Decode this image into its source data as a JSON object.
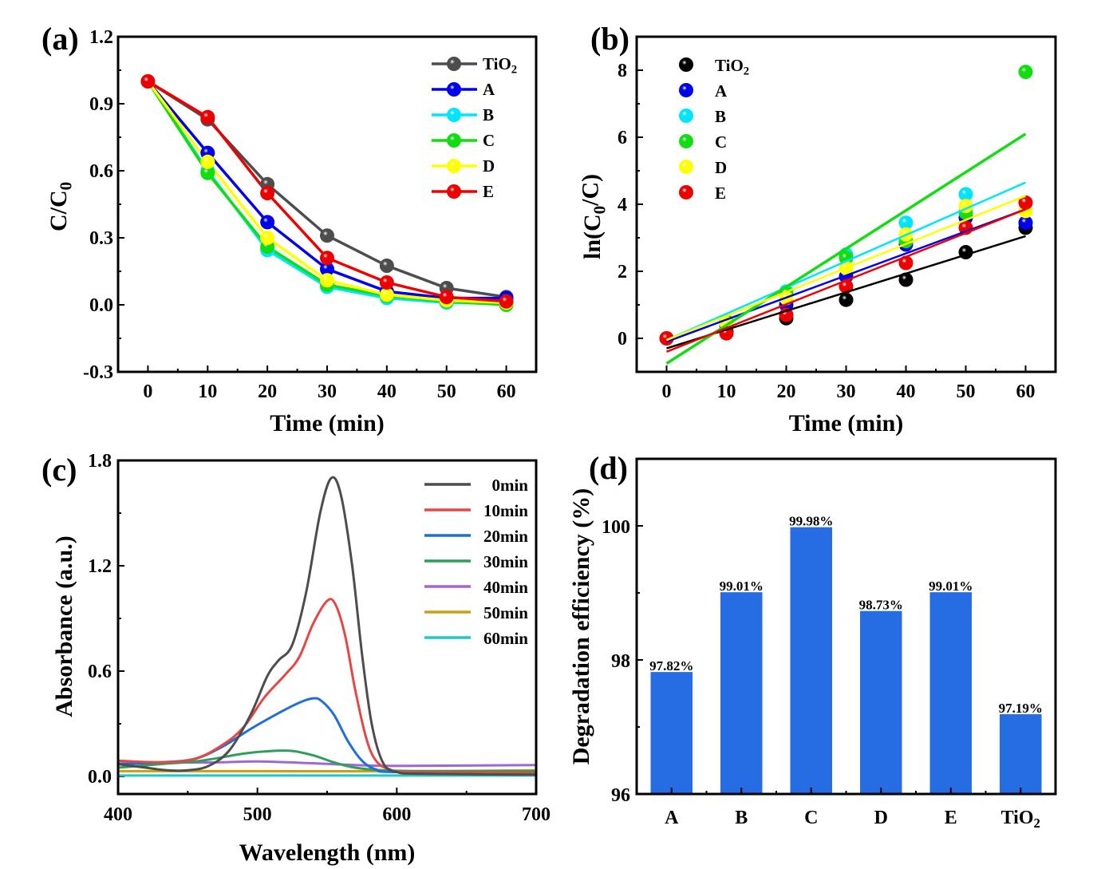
{
  "chart_data": [
    {
      "id": "a",
      "panel_label": "(a)",
      "type": "line",
      "xlabel": "Time (min)",
      "ylabel": "C/C0",
      "ylabel_parts": {
        "main": "C/C",
        "sub": "0"
      },
      "xlim": [
        -5,
        65
      ],
      "ylim": [
        -0.3,
        1.2
      ],
      "xticks": [
        0,
        10,
        20,
        30,
        40,
        50,
        60
      ],
      "yticks": [
        -0.3,
        0.0,
        0.3,
        0.6,
        0.9,
        1.2
      ],
      "ytick_labels": [
        "-0.3",
        "0.0",
        "0.3",
        "0.6",
        "0.9",
        "1.2"
      ],
      "legend_position": "top-right",
      "x": [
        0,
        10,
        20,
        30,
        40,
        50,
        60
      ],
      "series": [
        {
          "name": "TiO2",
          "label_main": "TiO",
          "label_sub": "2",
          "color": "#4d4d4d",
          "values": [
            1.0,
            0.83,
            0.54,
            0.31,
            0.175,
            0.075,
            0.035
          ]
        },
        {
          "name": "A",
          "label_main": "A",
          "label_sub": "",
          "color": "#0000ee",
          "values": [
            1.0,
            0.68,
            0.37,
            0.16,
            0.06,
            0.03,
            0.03
          ]
        },
        {
          "name": "B",
          "label_main": "B",
          "label_sub": "",
          "color": "#00e5ff",
          "values": [
            1.0,
            0.6,
            0.245,
            0.08,
            0.03,
            0.01,
            0.005
          ]
        },
        {
          "name": "C",
          "label_main": "C",
          "label_sub": "",
          "color": "#11dd11",
          "values": [
            1.0,
            0.59,
            0.26,
            0.09,
            0.04,
            0.015,
            0.0
          ]
        },
        {
          "name": "D",
          "label_main": "D",
          "label_sub": "",
          "color": "#ffff00",
          "values": [
            1.0,
            0.64,
            0.3,
            0.11,
            0.045,
            0.02,
            0.01
          ]
        },
        {
          "name": "E",
          "label_main": "E",
          "label_sub": "",
          "color": "#ee0000",
          "values": [
            1.0,
            0.84,
            0.5,
            0.21,
            0.1,
            0.035,
            0.015
          ]
        }
      ]
    },
    {
      "id": "b",
      "panel_label": "(b)",
      "type": "scatter",
      "xlabel": "Time (min)",
      "ylabel": "ln(C0/C)",
      "ylabel_parts": {
        "pre": "ln(C",
        "sub": "0",
        "post": "/C)"
      },
      "xlim": [
        -5,
        65
      ],
      "ylim": [
        -1,
        9
      ],
      "xticks": [
        0,
        10,
        20,
        30,
        40,
        50,
        60
      ],
      "yticks": [
        0,
        2,
        4,
        6,
        8
      ],
      "legend_position": "top-left",
      "x": [
        0,
        10,
        20,
        30,
        40,
        50,
        60
      ],
      "series": [
        {
          "name": "TiO2",
          "label_main": "TiO",
          "label_sub": "2",
          "color": "#000000",
          "values": [
            0,
            0.2,
            0.6,
            1.15,
            1.75,
            2.57,
            3.3
          ],
          "fit": [
            -0.3,
            3.05
          ]
        },
        {
          "name": "A",
          "label_main": "A",
          "label_sub": "",
          "color": "#0000ee",
          "values": [
            0,
            0.4,
            1.0,
            1.85,
            2.8,
            3.6,
            3.45
          ],
          "fit": [
            -0.1,
            3.85
          ]
        },
        {
          "name": "B",
          "label_main": "B",
          "label_sub": "",
          "color": "#00e5ff",
          "values": [
            0,
            0.5,
            1.4,
            2.5,
            3.45,
            4.3,
            4.05
          ],
          "fit": [
            -0.05,
            4.65
          ]
        },
        {
          "name": "C",
          "label_main": "C",
          "label_sub": "",
          "color": "#11dd11",
          "values": [
            0,
            0.5,
            1.35,
            2.4,
            2.9,
            3.75,
            7.95
          ],
          "fit": [
            -0.75,
            6.1
          ]
        },
        {
          "name": "D",
          "label_main": "D",
          "label_sub": "",
          "color": "#ffff00",
          "values": [
            0,
            0.45,
            1.2,
            2.1,
            3.1,
            3.95,
            3.8
          ],
          "fit": [
            -0.05,
            4.25
          ]
        },
        {
          "name": "E",
          "label_main": "E",
          "label_sub": "",
          "color": "#ee0000",
          "values": [
            0,
            0.15,
            0.7,
            1.55,
            2.25,
            3.3,
            4.05
          ],
          "fit": [
            -0.4,
            3.85
          ]
        }
      ]
    },
    {
      "id": "c",
      "panel_label": "(c)",
      "type": "line",
      "xlabel": "Wavelength (nm)",
      "ylabel": "Absorbance (a.u.)",
      "xlim": [
        400,
        700
      ],
      "ylim": [
        -0.1,
        1.8
      ],
      "xticks": [
        400,
        500,
        600,
        700
      ],
      "yticks": [
        0.0,
        0.6,
        1.2,
        1.8
      ],
      "ytick_labels": [
        "0.0",
        "0.6",
        "1.2",
        "1.8"
      ],
      "legend_position": "top-right",
      "series": [
        {
          "name": "0min",
          "color": "#4d4d4d",
          "points": [
            [
              400,
              0.07
            ],
            [
              420,
              0.05
            ],
            [
              435,
              0.035
            ],
            [
              450,
              0.035
            ],
            [
              465,
              0.06
            ],
            [
              480,
              0.15
            ],
            [
              495,
              0.35
            ],
            [
              507,
              0.57
            ],
            [
              515,
              0.66
            ],
            [
              525,
              0.75
            ],
            [
              535,
              1.05
            ],
            [
              545,
              1.5
            ],
            [
              553,
              1.7
            ],
            [
              560,
              1.6
            ],
            [
              568,
              1.2
            ],
            [
              575,
              0.7
            ],
            [
              582,
              0.3
            ],
            [
              590,
              0.08
            ],
            [
              600,
              0.025
            ],
            [
              620,
              0.015
            ],
            [
              700,
              0.01
            ]
          ]
        },
        {
          "name": "10min",
          "color": "#e84545",
          "points": [
            [
              400,
              0.09
            ],
            [
              430,
              0.08
            ],
            [
              455,
              0.1
            ],
            [
              475,
              0.18
            ],
            [
              490,
              0.28
            ],
            [
              505,
              0.45
            ],
            [
              520,
              0.58
            ],
            [
              530,
              0.68
            ],
            [
              540,
              0.87
            ],
            [
              550,
              1.0
            ],
            [
              556,
              0.98
            ],
            [
              563,
              0.8
            ],
            [
              570,
              0.5
            ],
            [
              578,
              0.22
            ],
            [
              585,
              0.09
            ],
            [
              595,
              0.04
            ],
            [
              610,
              0.025
            ],
            [
              700,
              0.02
            ]
          ]
        },
        {
          "name": "20min",
          "color": "#1f6fd8",
          "points": [
            [
              400,
              0.07
            ],
            [
              430,
              0.08
            ],
            [
              455,
              0.1
            ],
            [
              475,
              0.17
            ],
            [
              495,
              0.27
            ],
            [
              515,
              0.36
            ],
            [
              530,
              0.42
            ],
            [
              540,
              0.445
            ],
            [
              546,
              0.43
            ],
            [
              555,
              0.35
            ],
            [
              565,
              0.2
            ],
            [
              575,
              0.09
            ],
            [
              585,
              0.04
            ],
            [
              600,
              0.025
            ],
            [
              700,
              0.02
            ]
          ]
        },
        {
          "name": "30min",
          "color": "#2e9e5b",
          "points": [
            [
              400,
              0.05
            ],
            [
              430,
              0.07
            ],
            [
              460,
              0.09
            ],
            [
              490,
              0.13
            ],
            [
              510,
              0.145
            ],
            [
              525,
              0.145
            ],
            [
              540,
              0.12
            ],
            [
              555,
              0.08
            ],
            [
              570,
              0.05
            ],
            [
              590,
              0.035
            ],
            [
              620,
              0.03
            ],
            [
              700,
              0.03
            ]
          ]
        },
        {
          "name": "40min",
          "color": "#a066d8",
          "points": [
            [
              400,
              0.085
            ],
            [
              440,
              0.08
            ],
            [
              470,
              0.08
            ],
            [
              500,
              0.085
            ],
            [
              540,
              0.075
            ],
            [
              570,
              0.065
            ],
            [
              600,
              0.06
            ],
            [
              700,
              0.065
            ]
          ]
        },
        {
          "name": "50min",
          "color": "#c9a010",
          "points": [
            [
              400,
              0.03
            ],
            [
              500,
              0.03
            ],
            [
              600,
              0.03
            ],
            [
              700,
              0.035
            ]
          ]
        },
        {
          "name": "60min",
          "color": "#1ec8c8",
          "points": [
            [
              400,
              0.005
            ],
            [
              500,
              0.005
            ],
            [
              600,
              0.005
            ],
            [
              700,
              0.005
            ]
          ]
        }
      ]
    },
    {
      "id": "d",
      "panel_label": "(d)",
      "type": "bar",
      "xlabel": "",
      "ylabel": "Degradation efficiency (%)",
      "ylim": [
        96,
        101
      ],
      "yticks": [
        96,
        98,
        100
      ],
      "categories": [
        "A",
        "B",
        "C",
        "D",
        "E",
        "TiO2"
      ],
      "category_labels": [
        {
          "main": "A",
          "sub": ""
        },
        {
          "main": "B",
          "sub": ""
        },
        {
          "main": "C",
          "sub": ""
        },
        {
          "main": "D",
          "sub": ""
        },
        {
          "main": "E",
          "sub": ""
        },
        {
          "main": "TiO",
          "sub": "2"
        }
      ],
      "values": [
        97.82,
        99.01,
        99.98,
        98.73,
        99.01,
        97.19
      ],
      "data_labels": [
        "97.82%",
        "99.01%",
        "99.98%",
        "98.73%",
        "99.01%",
        "97.19%"
      ],
      "bar_color": "#266ce3"
    }
  ]
}
